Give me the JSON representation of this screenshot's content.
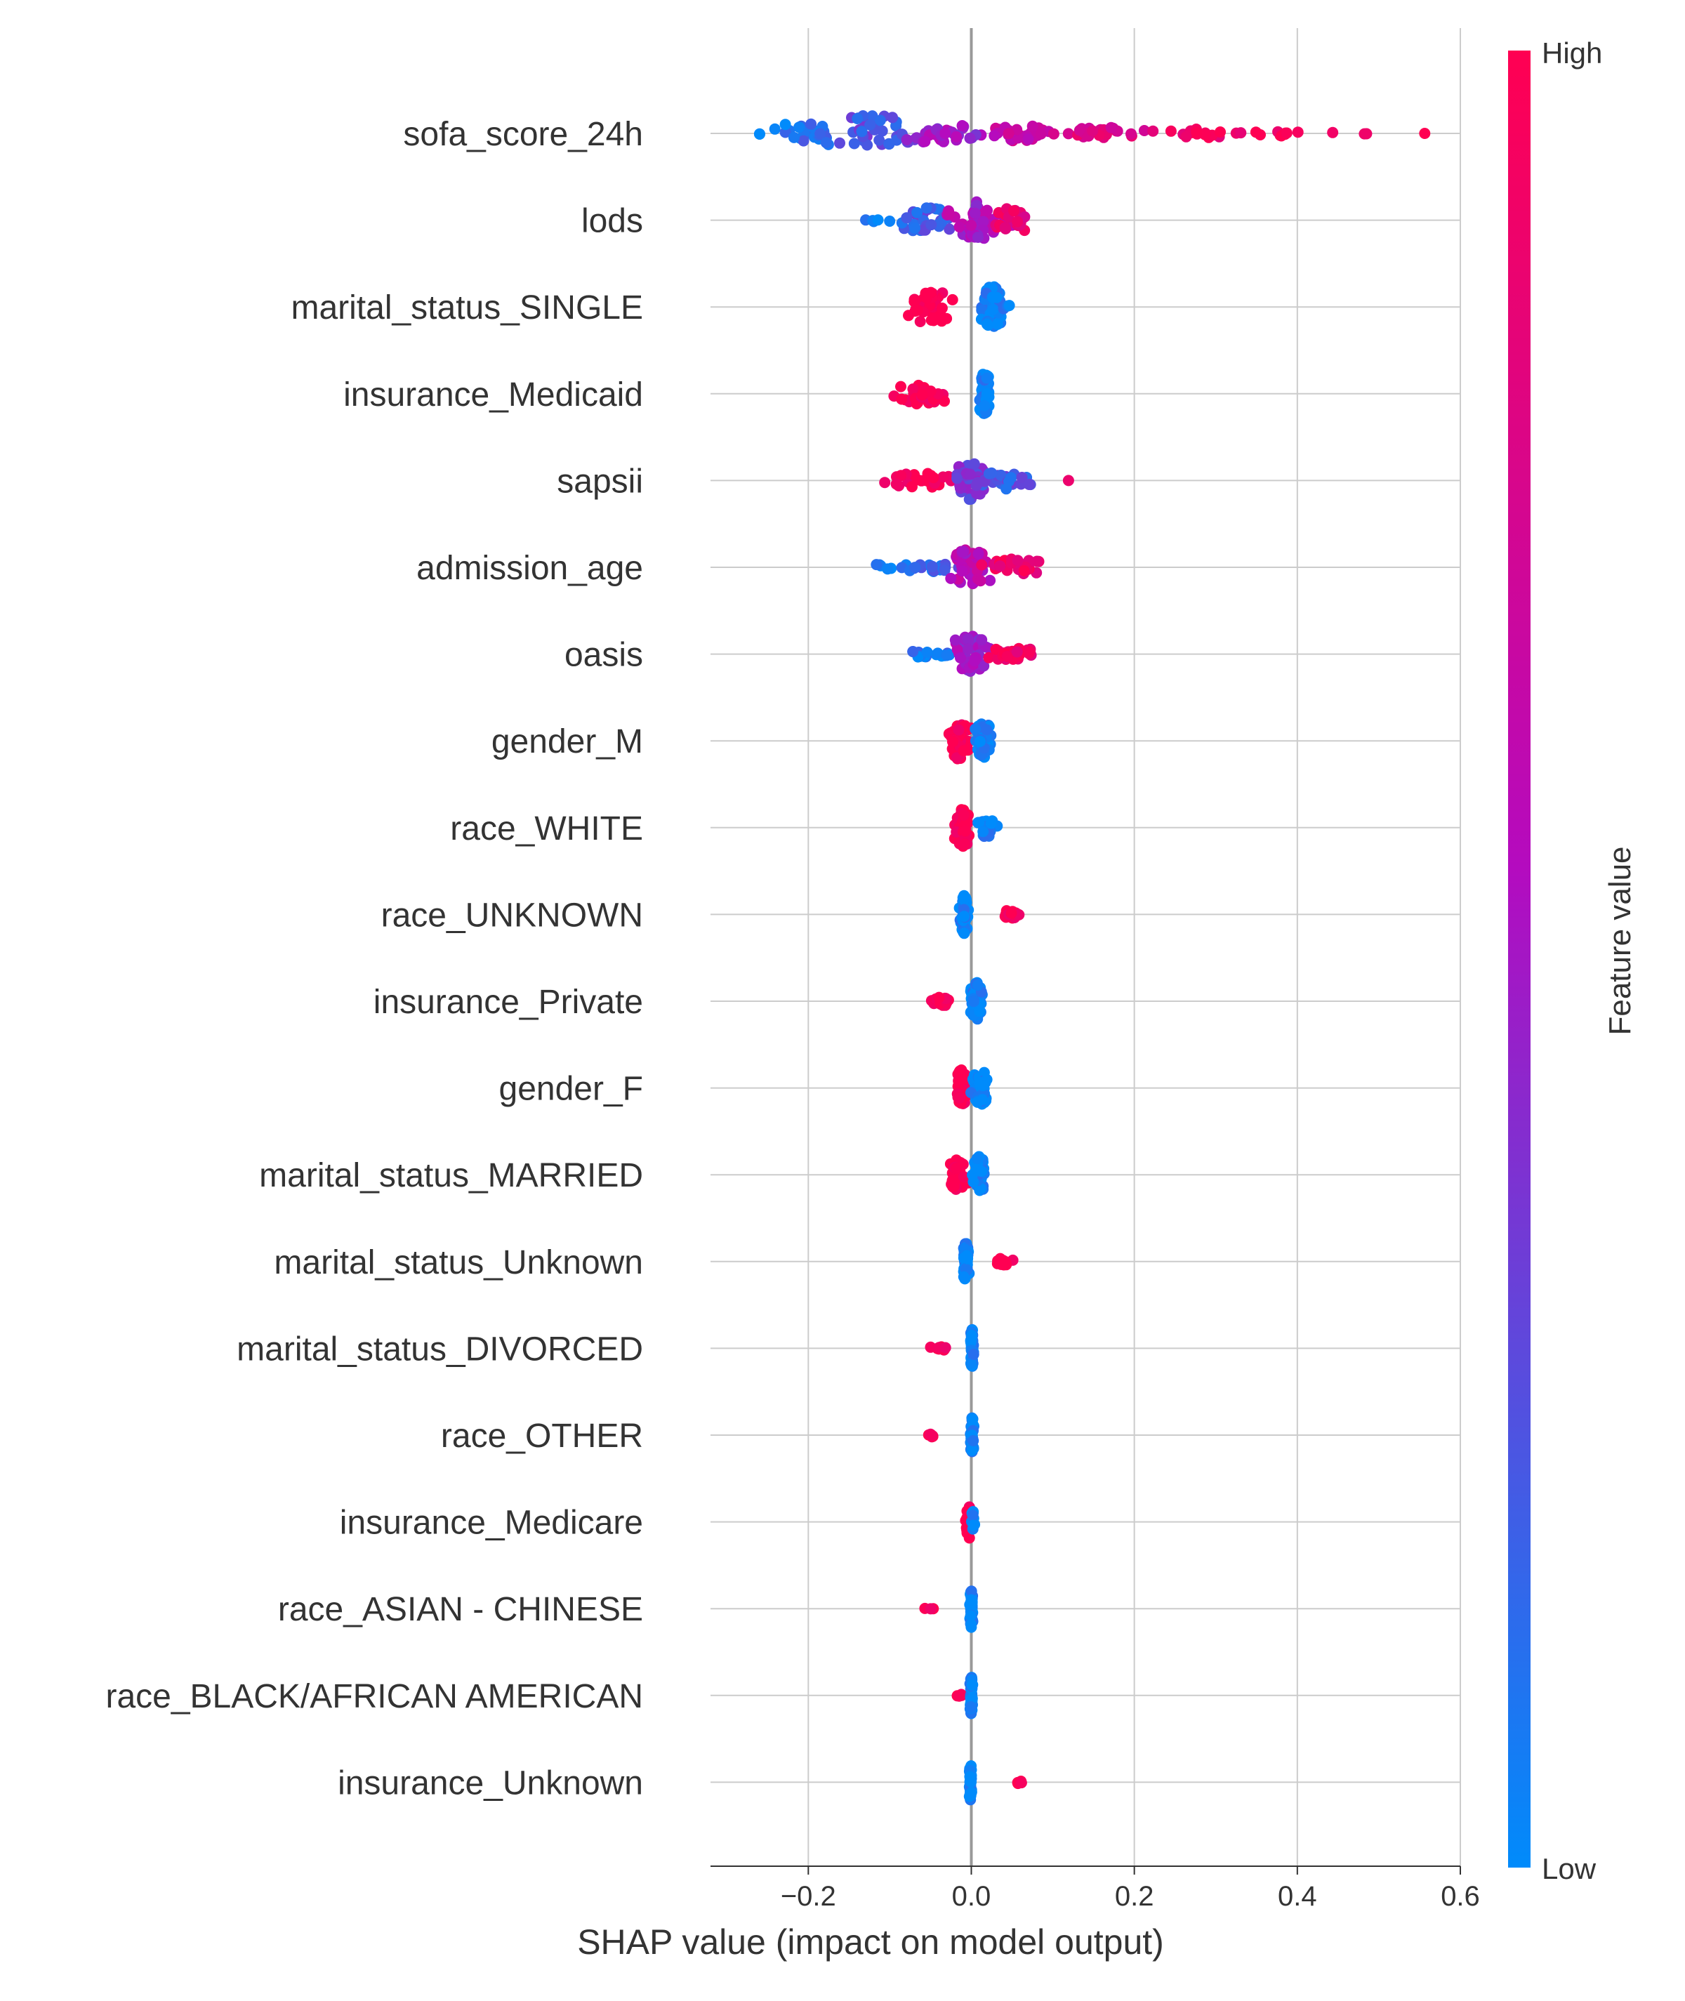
{
  "chart_data": {
    "type": "scatter",
    "subtype": "shap-beeswarm",
    "xlabel": "SHAP value (impact on model output)",
    "xlim": [
      -0.32,
      0.6
    ],
    "xticks": [
      -0.2,
      0.0,
      0.2,
      0.4,
      0.6
    ],
    "xtick_labels": [
      "−0.2",
      "0.0",
      "0.2",
      "0.4",
      "0.6"
    ],
    "colorbar": {
      "label": "Feature value",
      "high_label": "High",
      "low_label": "Low",
      "low_color": "#008bfb",
      "mid_color": "#b40bbf",
      "high_color": "#ff0052"
    },
    "features": [
      {
        "name": "sofa_score_24h",
        "clusters": [
          {
            "center": -0.27,
            "spread": 0.02,
            "n": 2,
            "value": 0.0,
            "jitter": 0.04
          },
          {
            "center": -0.2,
            "spread": 0.05,
            "n": 25,
            "value": 0.08,
            "jitter": 0.3
          },
          {
            "center": -0.12,
            "spread": 0.05,
            "n": 40,
            "value": 0.22,
            "jitter": 0.45
          },
          {
            "center": -0.03,
            "spread": 0.05,
            "n": 30,
            "value": 0.45,
            "jitter": 0.25
          },
          {
            "center": 0.06,
            "spread": 0.05,
            "n": 30,
            "value": 0.62,
            "jitter": 0.18
          },
          {
            "center": 0.17,
            "spread": 0.05,
            "n": 22,
            "value": 0.78,
            "jitter": 0.14
          },
          {
            "center": 0.28,
            "spread": 0.06,
            "n": 18,
            "value": 0.92,
            "jitter": 0.1
          },
          {
            "center": 0.38,
            "spread": 0.04,
            "n": 8,
            "value": 1.0,
            "jitter": 0.07
          },
          {
            "center": 0.47,
            "spread": 0.03,
            "n": 3,
            "value": 1.0,
            "jitter": 0.03
          },
          {
            "center": 0.56,
            "spread": 0.005,
            "n": 1,
            "value": 1.0,
            "jitter": 0.0
          }
        ]
      },
      {
        "name": "lods",
        "clusters": [
          {
            "center": -0.12,
            "spread": 0.02,
            "n": 5,
            "value": 0.05,
            "jitter": 0.04
          },
          {
            "center": -0.05,
            "spread": 0.04,
            "n": 30,
            "value": 0.2,
            "jitter": 0.3
          },
          {
            "center": 0.01,
            "spread": 0.03,
            "n": 50,
            "value": 0.5,
            "jitter": 0.45
          },
          {
            "center": 0.05,
            "spread": 0.025,
            "n": 25,
            "value": 0.85,
            "jitter": 0.3
          }
        ]
      },
      {
        "name": "marital_status_SINGLE",
        "clusters": [
          {
            "center": -0.05,
            "spread": 0.025,
            "n": 40,
            "value": 1.0,
            "jitter": 0.4
          },
          {
            "center": 0.025,
            "spread": 0.012,
            "n": 60,
            "value": 0.0,
            "jitter": 0.5
          },
          {
            "center": 0.045,
            "spread": 0.008,
            "n": 3,
            "value": 0.0,
            "jitter": 0.05
          }
        ]
      },
      {
        "name": "insurance_Medicaid",
        "clusters": [
          {
            "center": -0.065,
            "spread": 0.03,
            "n": 35,
            "value": 1.0,
            "jitter": 0.25
          },
          {
            "center": 0.016,
            "spread": 0.007,
            "n": 60,
            "value": 0.0,
            "jitter": 0.5
          }
        ]
      },
      {
        "name": "sapsii",
        "clusters": [
          {
            "center": -0.06,
            "spread": 0.05,
            "n": 25,
            "value": 1.0,
            "jitter": 0.18
          },
          {
            "center": 0.0,
            "spread": 0.02,
            "n": 40,
            "value": 0.3,
            "jitter": 0.45
          },
          {
            "center": 0.04,
            "spread": 0.03,
            "n": 25,
            "value": 0.2,
            "jitter": 0.2
          },
          {
            "center": 0.12,
            "spread": 0.005,
            "n": 1,
            "value": 1.0,
            "jitter": 0.0
          }
        ]
      },
      {
        "name": "admission_age",
        "clusters": [
          {
            "center": -0.11,
            "spread": 0.01,
            "n": 5,
            "value": 0.0,
            "jitter": 0.15
          },
          {
            "center": -0.05,
            "spread": 0.035,
            "n": 25,
            "value": 0.15,
            "jitter": 0.1
          },
          {
            "center": 0.0,
            "spread": 0.02,
            "n": 50,
            "value": 0.55,
            "jitter": 0.45
          },
          {
            "center": 0.05,
            "spread": 0.03,
            "n": 30,
            "value": 0.9,
            "jitter": 0.2
          }
        ]
      },
      {
        "name": "oasis",
        "clusters": [
          {
            "center": -0.05,
            "spread": 0.03,
            "n": 20,
            "value": 0.05,
            "jitter": 0.08
          },
          {
            "center": 0.0,
            "spread": 0.02,
            "n": 50,
            "value": 0.45,
            "jitter": 0.45
          },
          {
            "center": 0.05,
            "spread": 0.03,
            "n": 30,
            "value": 0.9,
            "jitter": 0.15
          }
        ]
      },
      {
        "name": "gender_M",
        "clusters": [
          {
            "center": -0.015,
            "spread": 0.012,
            "n": 50,
            "value": 1.0,
            "jitter": 0.45
          },
          {
            "center": 0.015,
            "spread": 0.01,
            "n": 45,
            "value": 0.0,
            "jitter": 0.45
          }
        ]
      },
      {
        "name": "race_WHITE",
        "clusters": [
          {
            "center": -0.01,
            "spread": 0.008,
            "n": 55,
            "value": 1.0,
            "jitter": 0.45
          },
          {
            "center": 0.018,
            "spread": 0.01,
            "n": 25,
            "value": 0.0,
            "jitter": 0.25
          }
        ]
      },
      {
        "name": "race_UNKNOWN",
        "clusters": [
          {
            "center": -0.009,
            "spread": 0.004,
            "n": 60,
            "value": 0.0,
            "jitter": 0.45
          },
          {
            "center": 0.048,
            "spread": 0.015,
            "n": 20,
            "value": 1.0,
            "jitter": 0.1
          }
        ]
      },
      {
        "name": "insurance_Private",
        "clusters": [
          {
            "center": -0.035,
            "spread": 0.012,
            "n": 20,
            "value": 1.0,
            "jitter": 0.12
          },
          {
            "center": 0.006,
            "spread": 0.006,
            "n": 60,
            "value": 0.0,
            "jitter": 0.45
          }
        ]
      },
      {
        "name": "gender_F",
        "clusters": [
          {
            "center": -0.012,
            "spread": 0.006,
            "n": 50,
            "value": 1.0,
            "jitter": 0.45
          },
          {
            "center": 0.012,
            "spread": 0.01,
            "n": 45,
            "value": 0.0,
            "jitter": 0.4
          }
        ]
      },
      {
        "name": "marital_status_MARRIED",
        "clusters": [
          {
            "center": -0.018,
            "spread": 0.01,
            "n": 40,
            "value": 1.0,
            "jitter": 0.35
          },
          {
            "center": 0.009,
            "spread": 0.006,
            "n": 50,
            "value": 0.0,
            "jitter": 0.45
          }
        ]
      },
      {
        "name": "marital_status_Unknown",
        "clusters": [
          {
            "center": -0.007,
            "spread": 0.003,
            "n": 55,
            "value": 0.0,
            "jitter": 0.45
          },
          {
            "center": 0.04,
            "spread": 0.01,
            "n": 15,
            "value": 1.0,
            "jitter": 0.08
          }
        ]
      },
      {
        "name": "marital_status_DIVORCED",
        "clusters": [
          {
            "center": -0.035,
            "spread": 0.012,
            "n": 8,
            "value": 1.0,
            "jitter": 0.04
          },
          {
            "center": 0.001,
            "spread": 0.002,
            "n": 50,
            "value": 0.0,
            "jitter": 0.45
          }
        ]
      },
      {
        "name": "race_OTHER",
        "clusters": [
          {
            "center": -0.048,
            "spread": 0.005,
            "n": 6,
            "value": 1.0,
            "jitter": 0.04
          },
          {
            "center": 0.001,
            "spread": 0.002,
            "n": 50,
            "value": 0.0,
            "jitter": 0.45
          }
        ]
      },
      {
        "name": "insurance_Medicare",
        "clusters": [
          {
            "center": -0.003,
            "spread": 0.003,
            "n": 30,
            "value": 1.0,
            "jitter": 0.4
          },
          {
            "center": 0.002,
            "spread": 0.002,
            "n": 10,
            "value": 0.0,
            "jitter": 0.25
          }
        ]
      },
      {
        "name": "race_ASIAN - CHINESE",
        "clusters": [
          {
            "center": -0.05,
            "spread": 0.007,
            "n": 3,
            "value": 1.0,
            "jitter": 0.01
          },
          {
            "center": 0.0,
            "spread": 0.0015,
            "n": 55,
            "value": 0.0,
            "jitter": 0.45
          }
        ]
      },
      {
        "name": "race_BLACK/AFRICAN AMERICAN",
        "clusters": [
          {
            "center": -0.015,
            "spread": 0.004,
            "n": 5,
            "value": 1.0,
            "jitter": 0.04
          },
          {
            "center": 0.0,
            "spread": 0.0015,
            "n": 45,
            "value": 0.0,
            "jitter": 0.45
          }
        ]
      },
      {
        "name": "insurance_Unknown",
        "clusters": [
          {
            "center": -0.001,
            "spread": 0.0015,
            "n": 50,
            "value": 0.0,
            "jitter": 0.45
          },
          {
            "center": 0.059,
            "spread": 0.004,
            "n": 4,
            "value": 1.0,
            "jitter": 0.04
          }
        ]
      }
    ]
  }
}
